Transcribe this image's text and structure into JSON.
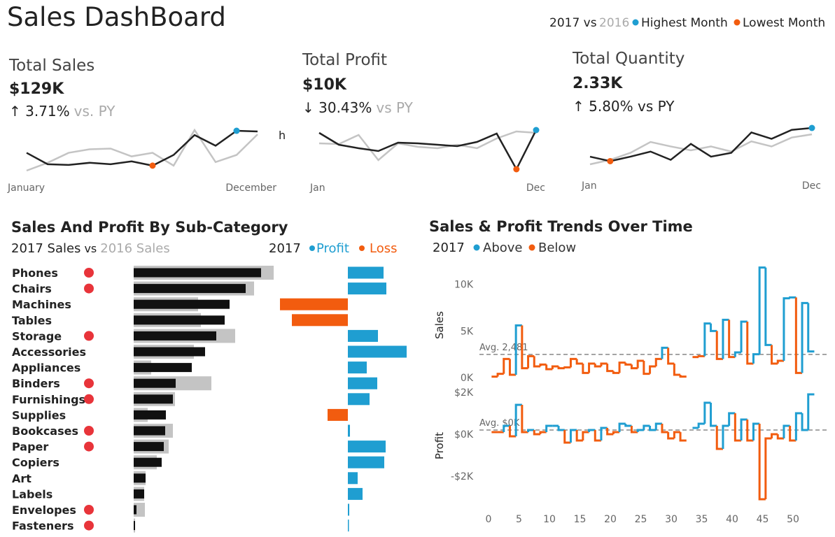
{
  "header": {
    "title": "Sales DashBoard",
    "current": "2017 vs",
    "previous": "2016",
    "high": "Highest Month",
    "low": "Lowest Month",
    "high_color": "#1f9ed1",
    "low_color": "#f25c0f"
  },
  "chart_data": [
    {
      "type": "line",
      "title": "Total Sales",
      "kpi": "$129K",
      "change": "↑ 3.71%",
      "compare": "vs. PY",
      "annotation": "h",
      "categories": [
        "January",
        null,
        null,
        null,
        null,
        null,
        null,
        null,
        null,
        null,
        null,
        "December"
      ],
      "series": [
        {
          "color": "#222222",
          "values": [
            7,
            3,
            2.75,
            3.5,
            3,
            4,
            2.5,
            6.25,
            13.25,
            9.5,
            14.75,
            14.5
          ]
        },
        {
          "color": "#c4c4c4",
          "values": [
            0.75,
            3.5,
            7,
            8.25,
            8.5,
            5.75,
            7,
            2.5,
            15,
            3.75,
            6.25,
            13.5
          ]
        }
      ],
      "high": 10,
      "low": 6
    },
    {
      "type": "line",
      "title": "Total Profit",
      "kpi": "$10K",
      "change": "↓ 30.43%",
      "compare": "vs PY",
      "categories": [
        "Jan",
        null,
        null,
        null,
        null,
        null,
        null,
        null,
        null,
        null,
        null,
        "Dec"
      ],
      "series": [
        {
          "color": "#222222",
          "values": [
            12,
            8.6,
            7.6,
            6.8,
            9.2,
            9,
            8.6,
            8.2,
            9.4,
            11.8,
            1.6,
            12.8
          ]
        },
        {
          "color": "#c4c4c4",
          "values": [
            9,
            8.8,
            11.4,
            4.2,
            9,
            8,
            7.6,
            8.6,
            7.6,
            10.4,
            12.4,
            12
          ]
        }
      ],
      "high": 11,
      "low": 10
    },
    {
      "type": "line",
      "title": "Total Quantity",
      "kpi": "2.33K",
      "change": "↑ 5.80% vs PY",
      "categories": [
        "Jan",
        null,
        null,
        null,
        null,
        null,
        null,
        null,
        null,
        null,
        null,
        "Dec"
      ],
      "series": [
        {
          "color": "#222222",
          "values": [
            4.4,
            3,
            4.4,
            6,
            3.4,
            8.4,
            4.4,
            5.6,
            12,
            10,
            12.8,
            13.4
          ]
        },
        {
          "color": "#c4c4c4",
          "values": [
            2,
            3.4,
            5.6,
            9,
            7.6,
            6.4,
            7.6,
            6,
            9.2,
            7.6,
            10.4,
            11.4
          ]
        }
      ],
      "high": 11,
      "low": 1
    },
    {
      "type": "bar",
      "title": "Sales And Profit By Sub-Category",
      "joiner": "vs",
      "categories": [
        "Phones",
        "Chairs",
        "Machines",
        "Tables",
        "Storage",
        "Accessories",
        "Appliances",
        "Binders",
        "Furnishings",
        "Supplies",
        "Bookcases",
        "Paper",
        "Copiers",
        "Art",
        "Labels",
        "Envelopes",
        "Fasteners"
      ],
      "series": [
        {
          "name": "2017 Sales",
          "color": "#111111",
          "values": [
            182,
            160,
            137,
            130,
            118,
            102,
            83,
            60,
            56,
            46,
            45,
            43,
            40,
            17,
            15,
            4,
            2
          ]
        },
        {
          "name": "2016 Sales",
          "color": "#c4c4c4",
          "values": [
            200,
            172,
            92,
            96,
            145,
            86,
            25,
            111,
            59,
            20,
            56,
            50,
            33,
            17,
            15,
            16,
            2
          ]
        }
      ],
      "flags": [
        true,
        true,
        false,
        false,
        true,
        false,
        false,
        true,
        true,
        false,
        true,
        true,
        false,
        false,
        false,
        true,
        true
      ],
      "flag_color": "#e8343a",
      "profit": {
        "legend": "2017",
        "positive": "Profit",
        "negative": "Loss",
        "positive_color": "#1f9ed1",
        "negative_color": "#f25c0f",
        "values": [
          51,
          55,
          -97,
          -80,
          43,
          84,
          27,
          42,
          31,
          -29,
          3,
          54,
          52,
          14,
          21,
          2,
          1
        ]
      }
    },
    {
      "type": "step",
      "title": "Sales & Profit Trends Over Time",
      "legend": "2017",
      "above": "Above",
      "below": "Below",
      "above_color": "#1f9ed1",
      "below_color": "#f25c0f",
      "ylabel": "Sales",
      "x": [
        1,
        2,
        3,
        4,
        5,
        6,
        7,
        8,
        9,
        10,
        11,
        12,
        13,
        14,
        15,
        16,
        17,
        18,
        19,
        20,
        21,
        22,
        23,
        24,
        25,
        26,
        27,
        28,
        29,
        30,
        31,
        32,
        33,
        34,
        35,
        36,
        37,
        38,
        39,
        40,
        41,
        42,
        43,
        44,
        45,
        46,
        47,
        48,
        49,
        50,
        51,
        52,
        53
      ],
      "values": [
        0.1,
        0.4,
        2.0,
        0.3,
        5.6,
        1.0,
        2.3,
        1.2,
        1.4,
        0.9,
        1.2,
        1.0,
        1.1,
        2.0,
        1.5,
        0.5,
        1.5,
        1.2,
        1.5,
        0.7,
        0.5,
        1.6,
        1.4,
        1.0,
        1.8,
        0.4,
        1.2,
        2.0,
        3.2,
        1.5,
        0.3,
        0.1,
        null,
        2.2,
        2.3,
        5.8,
        5.0,
        2.0,
        6.2,
        2.2,
        2.7,
        6.0,
        1.5,
        2.5,
        11.8,
        3.5,
        1.5,
        1.8,
        8.5,
        8.6,
        0.5,
        8.0,
        2.8
      ],
      "avg": {
        "value": 2.481,
        "label": "Avg. 2,481"
      },
      "xlim": [
        0,
        55
      ],
      "ylim": [
        -0.75,
        12
      ],
      "yticks": [
        {
          "value": 0,
          "label": "0K"
        },
        {
          "value": 5,
          "label": "5K"
        },
        {
          "value": 10,
          "label": "10K"
        }
      ]
    },
    {
      "type": "step",
      "ylabel": "Profit",
      "above_color": "#1f9ed1",
      "below_color": "#f25c0f",
      "x": [
        1,
        2,
        3,
        4,
        5,
        6,
        7,
        8,
        9,
        10,
        11,
        12,
        13,
        14,
        15,
        16,
        17,
        18,
        19,
        20,
        21,
        22,
        23,
        24,
        25,
        26,
        27,
        28,
        29,
        30,
        31,
        32,
        33,
        34,
        35,
        36,
        37,
        38,
        39,
        40,
        41,
        42,
        43,
        44,
        45,
        46,
        47,
        48,
        49,
        50,
        51,
        52,
        53
      ],
      "values": [
        0.1,
        0.1,
        0.4,
        -0.1,
        1.4,
        0.1,
        0.2,
        0.0,
        0.1,
        0.4,
        0.4,
        0.2,
        -0.4,
        0.2,
        -0.3,
        0.1,
        0.2,
        -0.3,
        0.3,
        0.0,
        0.1,
        0.5,
        0.4,
        0.1,
        0.2,
        0.4,
        0.2,
        0.5,
        0.1,
        -0.2,
        0.1,
        -0.3,
        null,
        0.3,
        0.5,
        1.5,
        0.4,
        -0.7,
        0.4,
        1.0,
        -0.3,
        0.7,
        -0.3,
        0.5,
        -3.1,
        -0.2,
        0.0,
        -0.2,
        0.4,
        -0.3,
        1.0,
        0.2,
        1.9
      ],
      "avg": {
        "value": 0.2,
        "label": "Avg. $0K"
      },
      "xlim": [
        0,
        55
      ],
      "ylim": [
        -3.3,
        2.2
      ],
      "yticks": [
        {
          "value": 2,
          "label": "$2K"
        },
        {
          "value": 0,
          "label": "$0K"
        },
        {
          "value": -2,
          "label": "-$2K"
        }
      ],
      "xticks": [
        0,
        5,
        10,
        15,
        20,
        25,
        30,
        35,
        40,
        45,
        50
      ]
    }
  ]
}
